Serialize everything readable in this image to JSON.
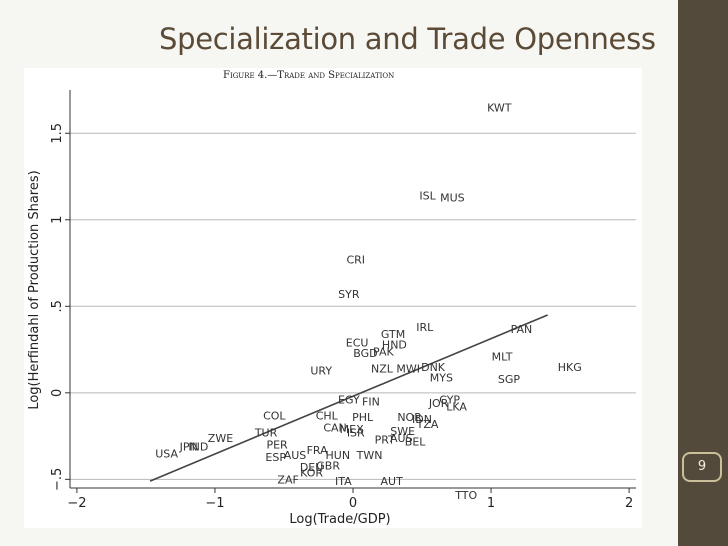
{
  "slide": {
    "title": "Specialization and Trade Openness",
    "page_number": "9",
    "colors": {
      "background": "#f6f6f3",
      "border": "#544a3c",
      "title": "#5b4a36"
    }
  },
  "chart_data": {
    "type": "scatter",
    "title": "Figure 4.—Trade and Specialization",
    "xlabel": "Log(Trade/GDP)",
    "ylabel": "Log(Herfindahl of Production Shares)",
    "xlim": [
      -2.05,
      2.05
    ],
    "ylim": [
      -0.55,
      1.75
    ],
    "xticks": [
      -2,
      -1,
      0,
      1,
      2
    ],
    "yticks": [
      -0.5,
      0,
      0.5,
      1,
      1.5
    ],
    "ytick_labels": [
      "−.5",
      "0",
      ".5",
      "1",
      "1.5"
    ],
    "grid": true,
    "fit_line": {
      "x": [
        -1.47,
        1.41
      ],
      "y": [
        -0.51,
        0.45
      ]
    },
    "points": [
      {
        "label": "KWT",
        "x": 1.06,
        "y": 1.65
      },
      {
        "label": "ISL",
        "x": 0.54,
        "y": 1.14
      },
      {
        "label": "MUS",
        "x": 0.72,
        "y": 1.13
      },
      {
        "label": "CRI",
        "x": 0.02,
        "y": 0.77
      },
      {
        "label": "SYR",
        "x": -0.03,
        "y": 0.57
      },
      {
        "label": "IRL",
        "x": 0.52,
        "y": 0.38
      },
      {
        "label": "PAN",
        "x": 1.22,
        "y": 0.37
      },
      {
        "label": "GTM",
        "x": 0.29,
        "y": 0.34
      },
      {
        "label": "ECU",
        "x": 0.03,
        "y": 0.29
      },
      {
        "label": "HND",
        "x": 0.3,
        "y": 0.28
      },
      {
        "label": "BGD",
        "x": 0.09,
        "y": 0.23
      },
      {
        "label": "PAK",
        "x": 0.22,
        "y": 0.24
      },
      {
        "label": "MLT",
        "x": 1.08,
        "y": 0.21
      },
      {
        "label": "HKG",
        "x": 1.57,
        "y": 0.15
      },
      {
        "label": "URY",
        "x": -0.23,
        "y": 0.13
      },
      {
        "label": "NZL",
        "x": 0.21,
        "y": 0.14
      },
      {
        "label": "MWI",
        "x": 0.4,
        "y": 0.14
      },
      {
        "label": "DNK",
        "x": 0.58,
        "y": 0.15
      },
      {
        "label": "MYS",
        "x": 0.64,
        "y": 0.09
      },
      {
        "label": "SGP",
        "x": 1.13,
        "y": 0.08
      },
      {
        "label": "EGY",
        "x": -0.03,
        "y": -0.04
      },
      {
        "label": "FIN",
        "x": 0.13,
        "y": -0.05
      },
      {
        "label": "JOR",
        "x": 0.62,
        "y": -0.06
      },
      {
        "label": "CYP",
        "x": 0.7,
        "y": -0.04
      },
      {
        "label": "LKA",
        "x": 0.75,
        "y": -0.08
      },
      {
        "label": "COL",
        "x": -0.57,
        "y": -0.13
      },
      {
        "label": "CHL",
        "x": -0.19,
        "y": -0.13
      },
      {
        "label": "PHL",
        "x": 0.07,
        "y": -0.14
      },
      {
        "label": "NOR",
        "x": 0.41,
        "y": -0.14
      },
      {
        "label": "IDN",
        "x": 0.5,
        "y": -0.15
      },
      {
        "label": "TZA",
        "x": 0.54,
        "y": -0.18
      },
      {
        "label": "CAN",
        "x": -0.13,
        "y": -0.2
      },
      {
        "label": "MEX",
        "x": -0.01,
        "y": -0.21
      },
      {
        "label": "SWE",
        "x": 0.36,
        "y": -0.22
      },
      {
        "label": "ISR",
        "x": 0.02,
        "y": -0.23
      },
      {
        "label": "PRT",
        "x": 0.23,
        "y": -0.27
      },
      {
        "label": "AUS",
        "x": 0.35,
        "y": -0.26
      },
      {
        "label": "BEL",
        "x": 0.45,
        "y": -0.28
      },
      {
        "label": "ZWE",
        "x": -0.96,
        "y": -0.26
      },
      {
        "label": "TUR",
        "x": -0.63,
        "y": -0.23
      },
      {
        "label": "USA",
        "x": -1.35,
        "y": -0.35
      },
      {
        "label": "JPN",
        "x": -1.19,
        "y": -0.31
      },
      {
        "label": "IND",
        "x": -1.12,
        "y": -0.31
      },
      {
        "label": "PER",
        "x": -0.55,
        "y": -0.3
      },
      {
        "label": "FRA",
        "x": -0.26,
        "y": -0.33
      },
      {
        "label": "ESP",
        "x": -0.56,
        "y": -0.37
      },
      {
        "label": "AUS",
        "x": -0.42,
        "y": -0.36
      },
      {
        "label": "HUN",
        "x": -0.11,
        "y": -0.36
      },
      {
        "label": "TWN",
        "x": 0.12,
        "y": -0.36
      },
      {
        "label": "GBR",
        "x": -0.18,
        "y": -0.42
      },
      {
        "label": "DEU",
        "x": -0.3,
        "y": -0.43
      },
      {
        "label": "KOR",
        "x": -0.3,
        "y": -0.46
      },
      {
        "label": "ZAF",
        "x": -0.47,
        "y": -0.5
      },
      {
        "label": "ITA",
        "x": -0.07,
        "y": -0.51
      },
      {
        "label": "AUT",
        "x": 0.28,
        "y": -0.51
      },
      {
        "label": "TTO",
        "x": 0.82,
        "y": -0.59
      }
    ]
  }
}
